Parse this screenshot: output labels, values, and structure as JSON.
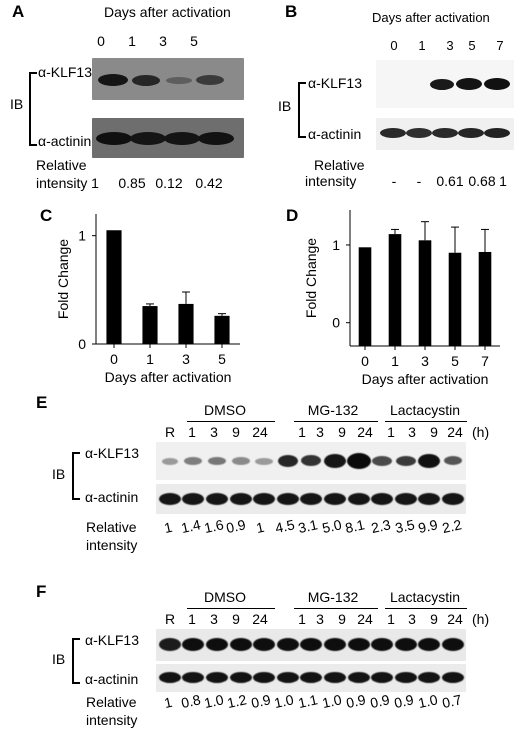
{
  "panels": {
    "A": {
      "label": "A",
      "title": "Days after activation",
      "lanes": [
        "0",
        "1",
        "3",
        "5"
      ],
      "ib": "IB",
      "row1": "α-KLF13",
      "row2": "α-actinin",
      "rel1": "Relative",
      "rel2": "intensity",
      "values": [
        "1",
        "0.85",
        "0.12",
        "0.42"
      ]
    },
    "B": {
      "label": "B",
      "title": "Days after activation",
      "lanes": [
        "0",
        "1",
        "3",
        "5",
        "7"
      ],
      "ib": "IB",
      "row1": "α-KLF13",
      "row2": "α-actinin",
      "rel1": "Relative",
      "rel2": "intensity",
      "values": [
        "-",
        "-",
        "0.61",
        "0.68",
        "1"
      ]
    },
    "E": {
      "label": "E",
      "groups": [
        "DMSO",
        "MG-132",
        "Lactacystin"
      ],
      "lanes": [
        "R",
        "1",
        "3",
        "9",
        "24",
        "1",
        "3",
        "9",
        "24",
        "1",
        "3",
        "9",
        "24"
      ],
      "unit": "(h)",
      "ib": "IB",
      "row1": "α-KLF13",
      "row2": "α-actinin",
      "rel1": "Relative",
      "rel2": "intensity",
      "values": [
        "1",
        "1.4",
        "1.6",
        "0.9",
        "1",
        "4.5",
        "3.1",
        "5.0",
        "8.1",
        "2.3",
        "3.5",
        "9.9",
        "2.2"
      ]
    },
    "F": {
      "label": "F",
      "groups": [
        "DMSO",
        "MG-132",
        "Lactacystin"
      ],
      "lanes": [
        "R",
        "1",
        "3",
        "9",
        "24",
        "1",
        "3",
        "9",
        "24",
        "1",
        "3",
        "9",
        "24"
      ],
      "unit": "(h)",
      "ib": "IB",
      "row1": "α-KLF13",
      "row2": "α-actinin",
      "rel1": "Relative",
      "rel2": "intensity",
      "values": [
        "1",
        "0.8",
        "1.0",
        "1.2",
        "0.9",
        "1.0",
        "1.1",
        "1.0",
        "0.9",
        "0.9",
        "0.9",
        "1.0",
        "0.7"
      ]
    }
  },
  "chart_data": [
    {
      "panel": "C",
      "type": "bar",
      "categories": [
        "0",
        "1",
        "3",
        "5"
      ],
      "values": [
        1.05,
        0.35,
        0.37,
        0.26
      ],
      "errors": [
        0,
        0.02,
        0.11,
        0.02
      ],
      "xlabel": "Days after activation",
      "ylabel": "Fold Change",
      "yticks": [
        "0",
        "1"
      ],
      "ylim": [
        0,
        1.2
      ]
    },
    {
      "panel": "D",
      "type": "bar",
      "categories": [
        "0",
        "1",
        "3",
        "5",
        "7"
      ],
      "values": [
        0.97,
        1.14,
        1.06,
        0.9,
        0.91
      ],
      "errors": [
        0,
        0.06,
        0.24,
        0.33,
        0.29
      ],
      "xlabel": "Days after activation",
      "ylabel": "Fold Change",
      "yticks": [
        "0",
        "1"
      ],
      "ylim": [
        -0.3,
        1.45
      ]
    }
  ]
}
